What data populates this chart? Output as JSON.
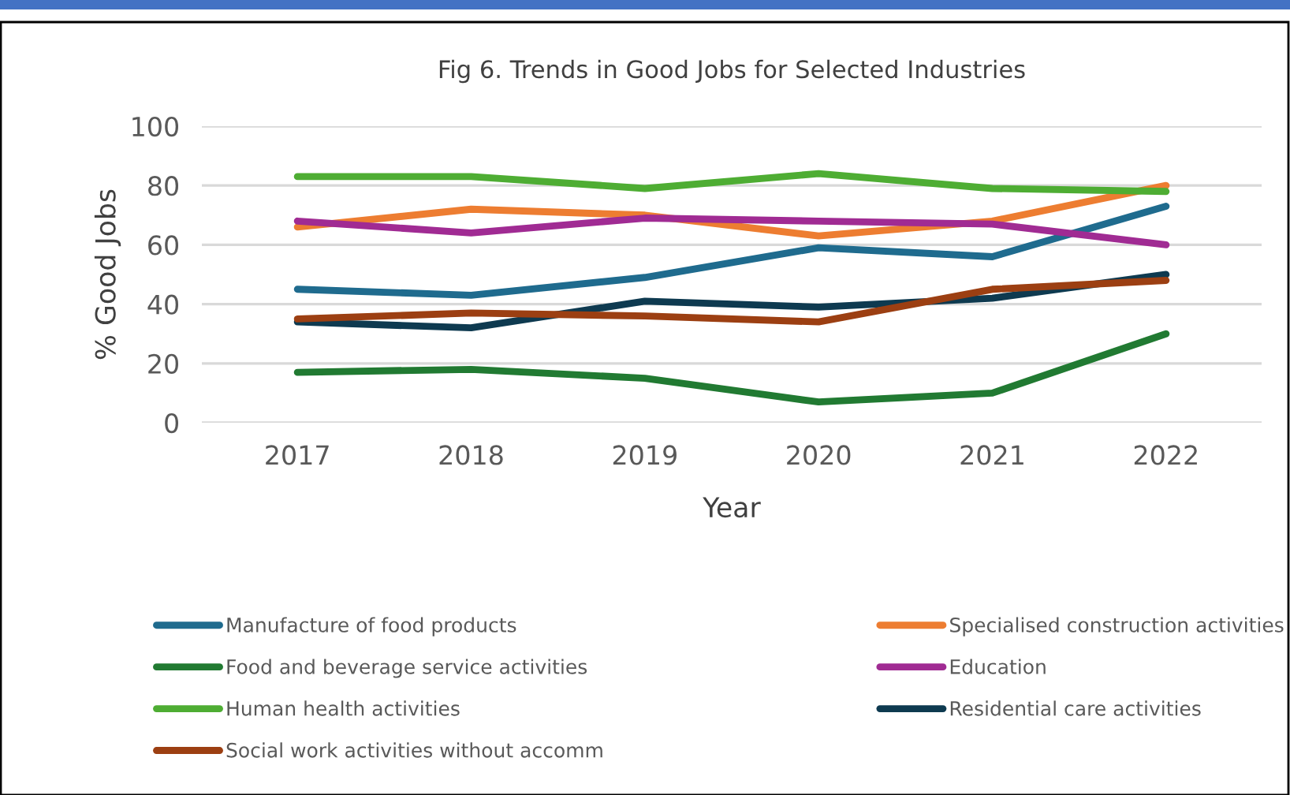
{
  "chart_data": {
    "type": "line",
    "title": "Fig 6. Trends in Good Jobs for Selected Industries",
    "xlabel": "Year",
    "ylabel": "% Good Jobs",
    "categories": [
      "2017",
      "2018",
      "2019",
      "2020",
      "2021",
      "2022"
    ],
    "series": [
      {
        "name": "Manufacture of food products",
        "color": "#1f6b8e",
        "values": [
          45,
          43,
          49,
          59,
          56,
          73
        ]
      },
      {
        "name": "Specialised construction activities",
        "color": "#ed7d31",
        "values": [
          66,
          72,
          70,
          63,
          68,
          80
        ]
      },
      {
        "name": "Food and beverage service activities",
        "color": "#217a32",
        "values": [
          17,
          18,
          15,
          7,
          10,
          30
        ]
      },
      {
        "name": "Education",
        "color": "#a02b93",
        "values": [
          68,
          64,
          69,
          68,
          67,
          60
        ]
      },
      {
        "name": "Human health activities",
        "color": "#4ead33",
        "values": [
          83,
          83,
          79,
          84,
          79,
          78
        ]
      },
      {
        "name": "Residential care activities",
        "color": "#0e3a50",
        "values": [
          34,
          32,
          41,
          39,
          42,
          50
        ]
      },
      {
        "name": "Social work activities without accomm",
        "color": "#9c3f12",
        "values": [
          35,
          37,
          36,
          34,
          45,
          48
        ]
      }
    ],
    "ylim": [
      0,
      100
    ],
    "yticks": [
      0,
      20,
      40,
      60,
      80,
      100
    ],
    "grid": "y",
    "legend": "bottom",
    "marker": "none",
    "line_style": "solid"
  }
}
